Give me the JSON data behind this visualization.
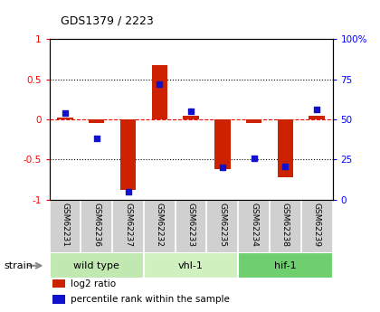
{
  "title": "GDS1379 / 2223",
  "samples": [
    "GSM62231",
    "GSM62236",
    "GSM62237",
    "GSM62232",
    "GSM62233",
    "GSM62235",
    "GSM62234",
    "GSM62238",
    "GSM62239"
  ],
  "log2_ratio": [
    0.02,
    -0.04,
    -0.88,
    0.67,
    0.04,
    -0.62,
    -0.04,
    -0.72,
    0.05
  ],
  "percentile_rank": [
    54,
    38,
    5,
    72,
    55,
    20,
    26,
    21,
    56
  ],
  "ylim_left": [
    -1,
    1
  ],
  "ylim_right": [
    0,
    100
  ],
  "yticks_left": [
    -1,
    -0.5,
    0,
    0.5,
    1
  ],
  "yticks_right": [
    0,
    25,
    50,
    75,
    100
  ],
  "dotted_lines": [
    0.5,
    -0.5
  ],
  "groups": [
    {
      "label": "wild type",
      "start": 0,
      "end": 3,
      "color": "#c0e8b0"
    },
    {
      "label": "vhl-1",
      "start": 3,
      "end": 6,
      "color": "#d0f0c0"
    },
    {
      "label": "hif-1",
      "start": 6,
      "end": 9,
      "color": "#6ecf6e"
    }
  ],
  "bar_color": "#cc2200",
  "dot_color": "#1111cc",
  "bar_width": 0.5,
  "background_color": "#ffffff",
  "plot_bg": "#ffffff",
  "strain_label": "strain",
  "legend_items": [
    {
      "label": "log2 ratio",
      "color": "#cc2200"
    },
    {
      "label": "percentile rank within the sample",
      "color": "#1111cc"
    }
  ]
}
